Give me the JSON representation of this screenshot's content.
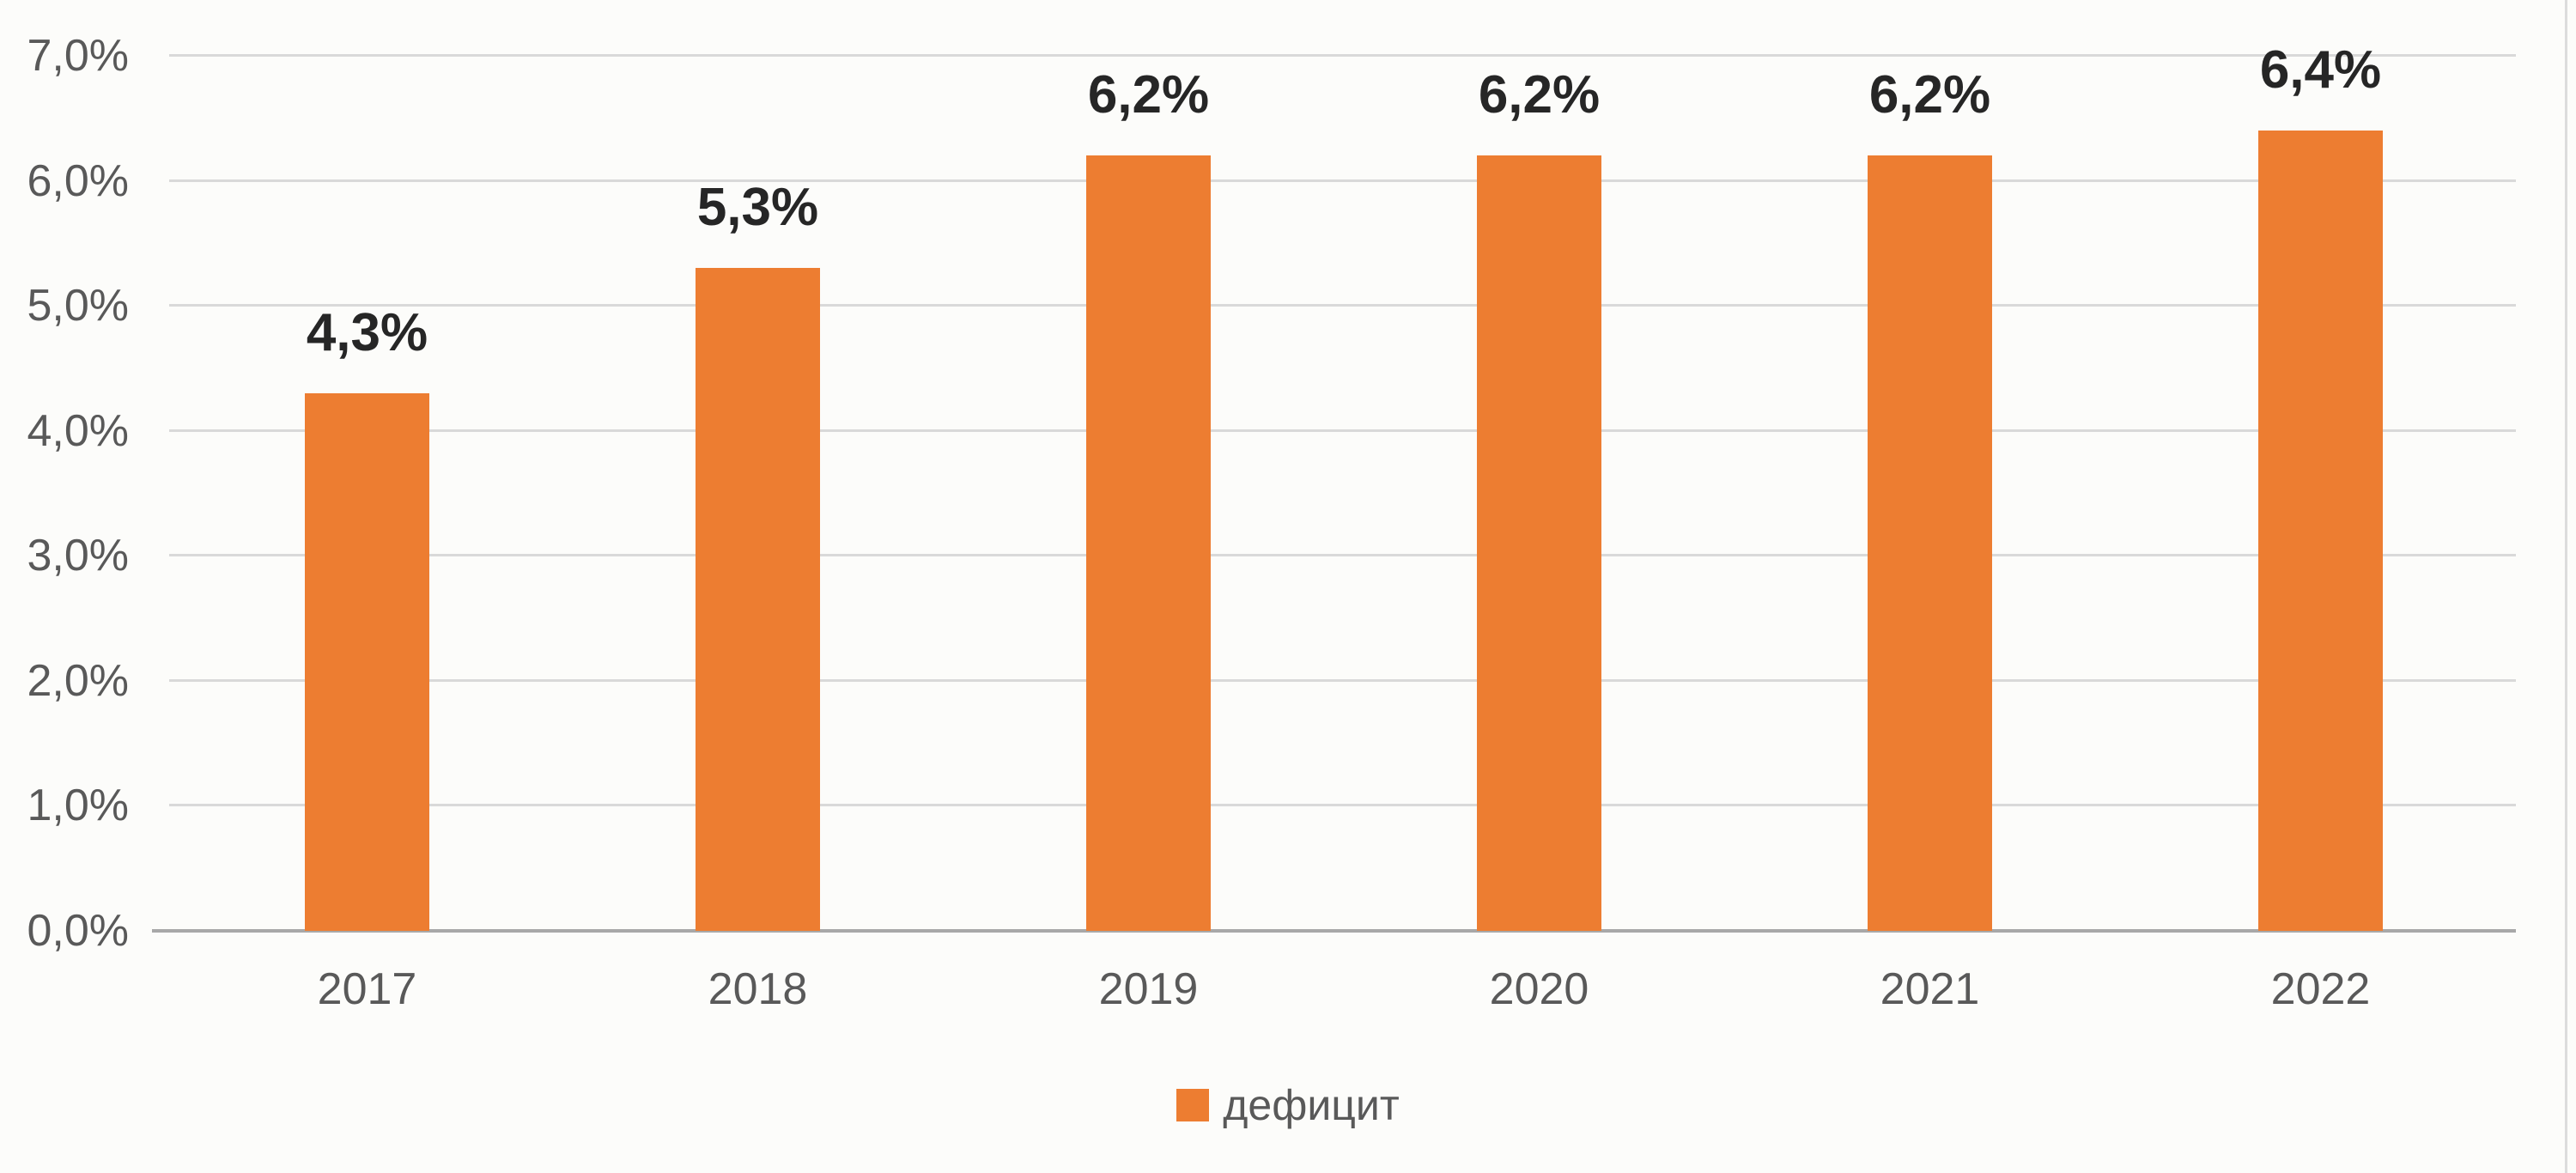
{
  "chart_data": {
    "type": "bar",
    "title": "",
    "xlabel": "",
    "ylabel": "",
    "categories": [
      "2017",
      "2018",
      "2019",
      "2020",
      "2021",
      "2022"
    ],
    "values": [
      4.3,
      5.3,
      6.2,
      6.2,
      6.2,
      6.4
    ],
    "data_labels": [
      "4,3%",
      "5,3%",
      "6,2%",
      "6,2%",
      "6,2%",
      "6,4%"
    ],
    "series_name": "дефицит",
    "ylim": [
      0,
      7
    ],
    "ytick_step": 1,
    "ytick_labels": [
      "0,0%",
      "1,0%",
      "2,0%",
      "3,0%",
      "4,0%",
      "5,0%",
      "6,0%",
      "7,0%"
    ],
    "grid": true,
    "legend_position": "bottom",
    "bar_color": "#ED7D31"
  },
  "legend": {
    "items": [
      {
        "label": "дефицит",
        "color": "#ED7D31"
      }
    ]
  },
  "colors": {
    "bar": "#ED7D31",
    "data_label": "#262626",
    "axis_text": "#595959",
    "gridline": "#D9D9D9",
    "axis_line": "#A8A8A8",
    "background": "#FCFCFA"
  }
}
